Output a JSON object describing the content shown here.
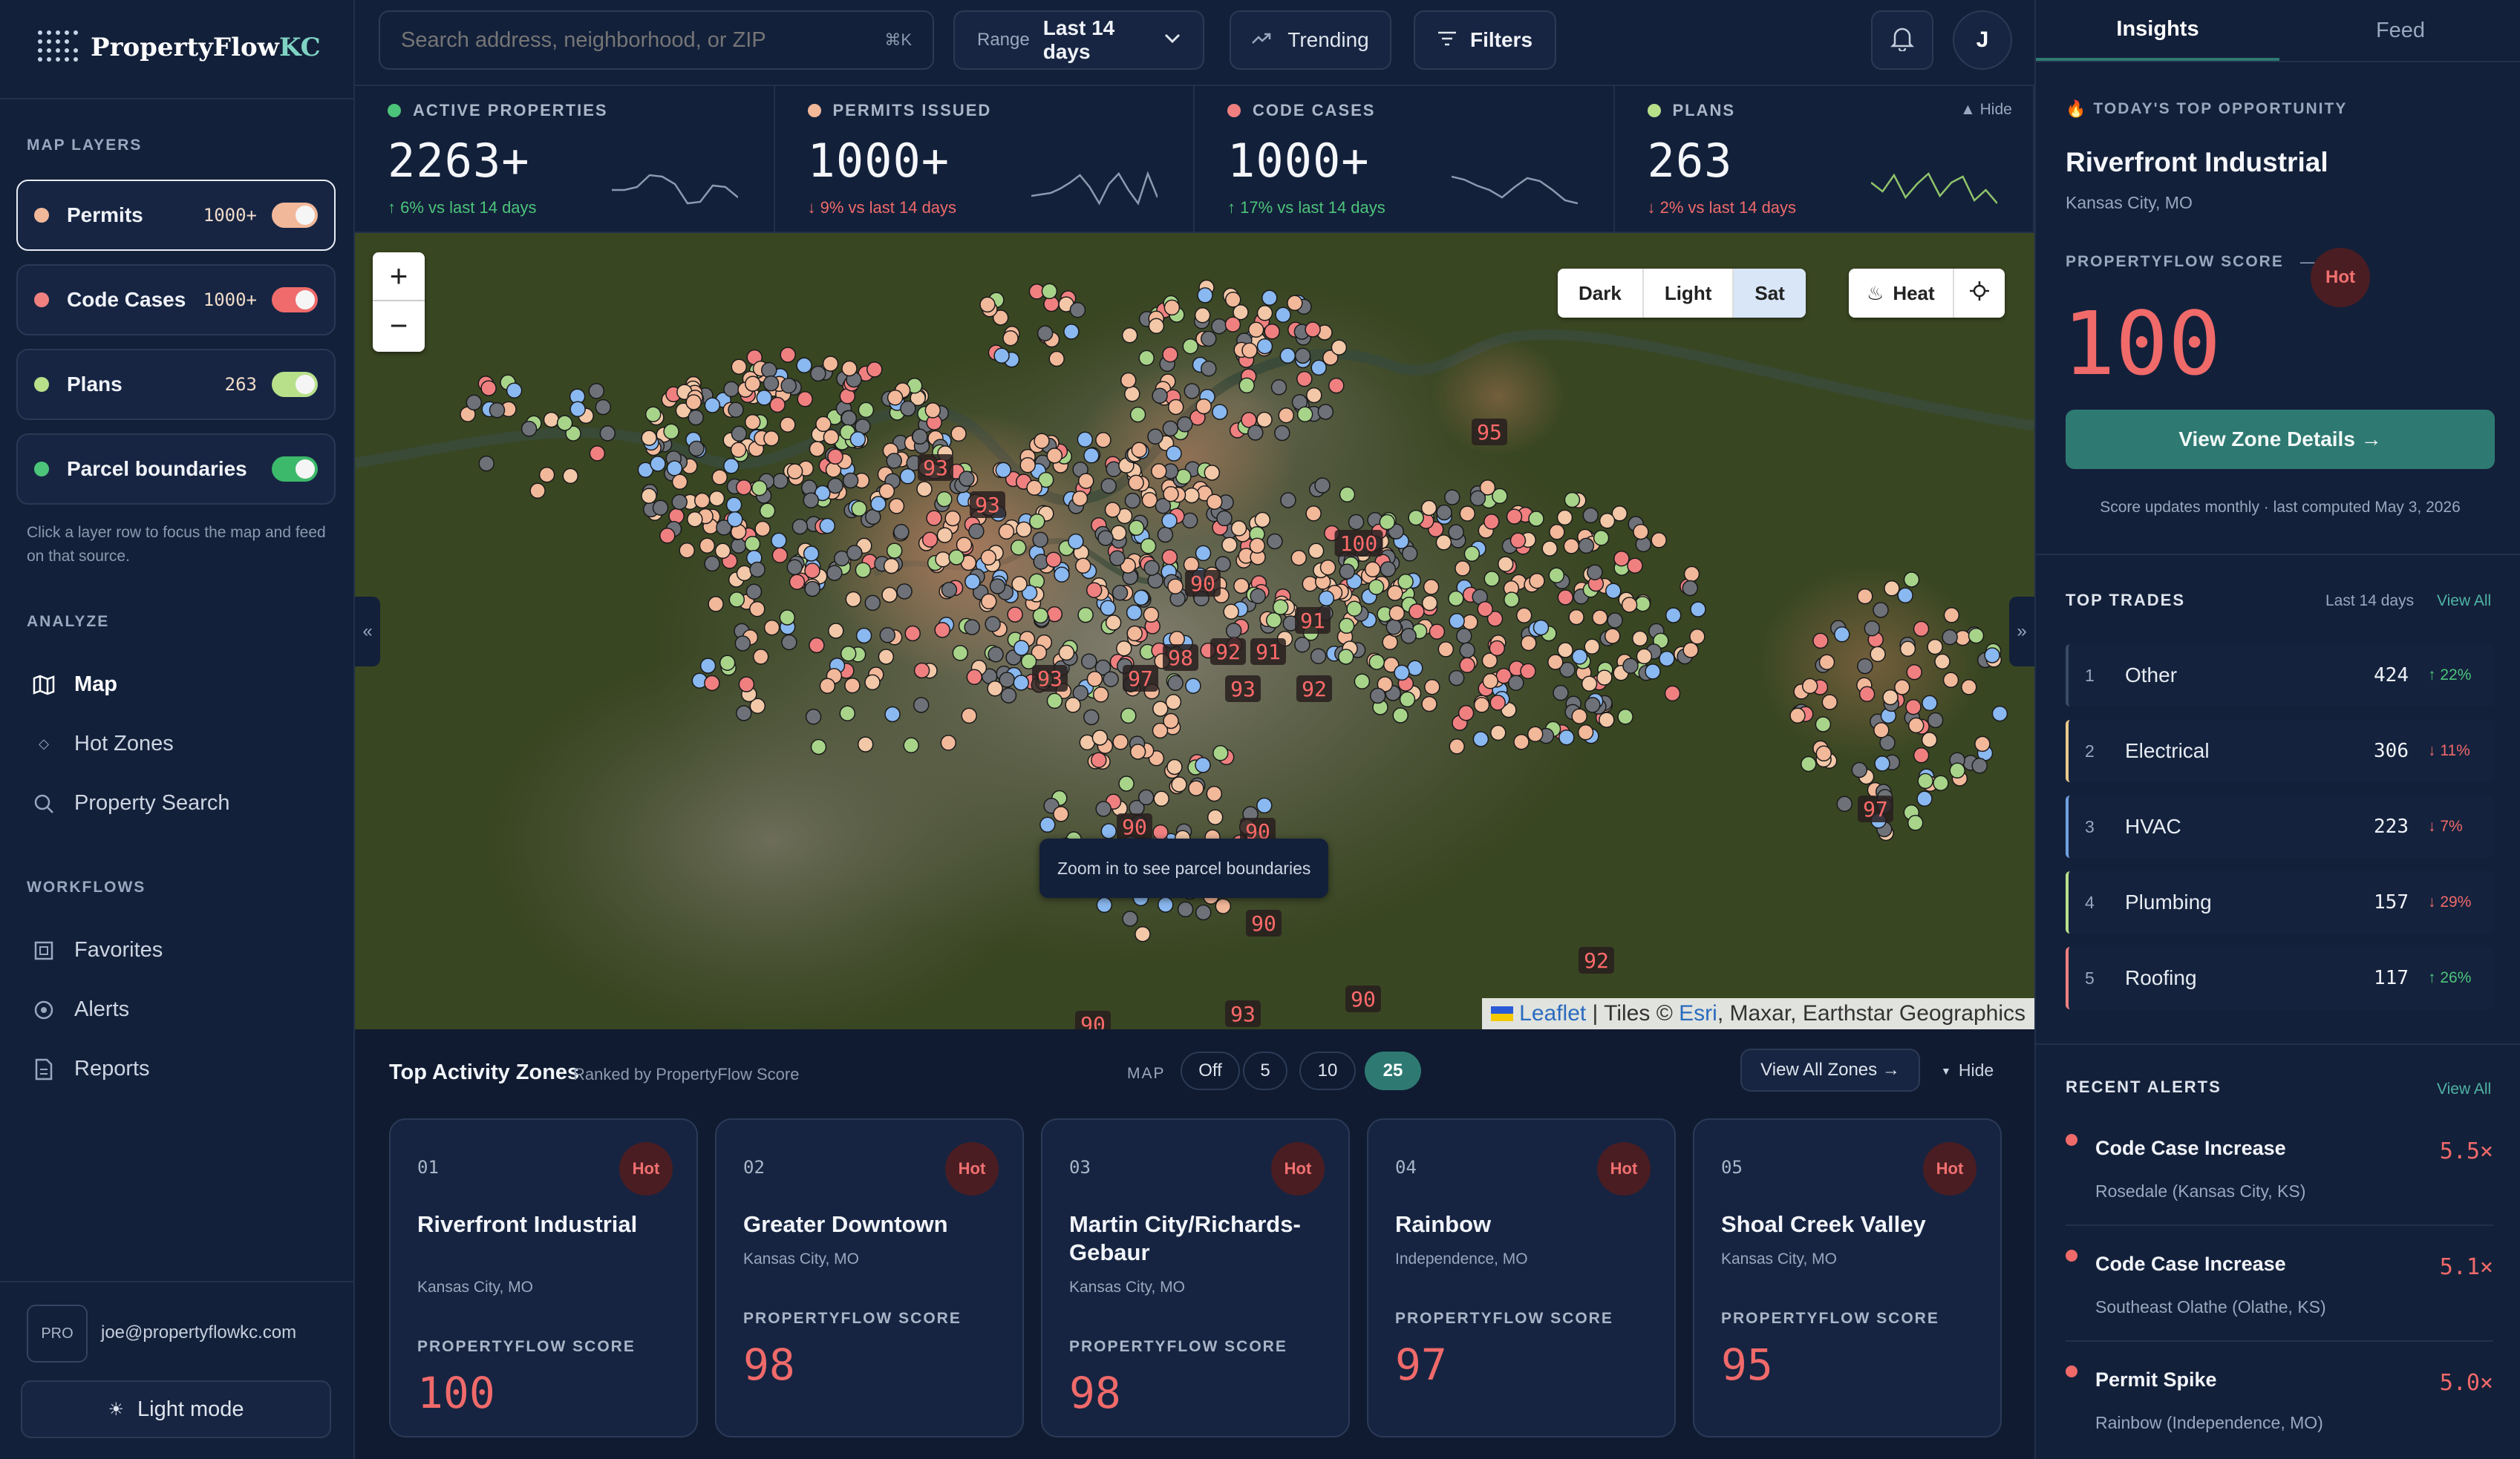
{
  "brand": {
    "name_a": "PropertyFlow",
    "name_b": "KC"
  },
  "sidebar": {
    "map_layers_label": "MAP LAYERS",
    "layers": [
      {
        "name": "Permits",
        "count": "1000+",
        "color": "#f2b89a",
        "toggle_color": "#f2b89a"
      },
      {
        "name": "Code Cases",
        "count": "1000+",
        "color": "#f08080",
        "toggle_color": "#f06b6b"
      },
      {
        "name": "Plans",
        "count": "263",
        "color": "#b8e08a",
        "toggle_color": "#b8e08a"
      },
      {
        "name": "Parcel boundaries",
        "count": "",
        "color": "#4cc47a",
        "toggle_color": "#3cb96a"
      }
    ],
    "layer_hint": "Click a layer row to focus the map and feed on that source.",
    "analyze_label": "ANALYZE",
    "analyze": [
      "Map",
      "Hot Zones",
      "Property Search"
    ],
    "workflows_label": "WORKFLOWS",
    "workflows": [
      "Favorites",
      "Alerts",
      "Reports"
    ],
    "user_badge": "PRO",
    "user_email": "joe@propertyflowkc.com",
    "light_mode": "Light mode"
  },
  "topbar": {
    "search_placeholder": "Search address, neighborhood, or ZIP",
    "search_shortcut": "⌘K",
    "range_label": "Range",
    "range_value": "Last 14 days",
    "trending": "Trending",
    "filters": "Filters",
    "avatar": "J"
  },
  "stats": [
    {
      "label": "ACTIVE PROPERTIES",
      "value": "2263+",
      "change": "↑ 6% vs last 14 days",
      "dot": "#4cc47a",
      "up": true
    },
    {
      "label": "PERMITS ISSUED",
      "value": "1000+",
      "change": "↓ 9% vs last 14 days",
      "dot": "#f2b89a",
      "up": false
    },
    {
      "label": "CODE CASES",
      "value": "1000+",
      "change": "↑ 17% vs last 14 days",
      "dot": "#f08080",
      "up": true
    },
    {
      "label": "PLANS",
      "value": "263",
      "change": "↓ 2% vs last 14 days",
      "dot": "#b8e08a",
      "up": false
    }
  ],
  "stats_hide": "▲ Hide",
  "map": {
    "style_options": [
      "Dark",
      "Light",
      "Sat"
    ],
    "style_selected": "Sat",
    "heat_label": "Heat",
    "zoom_in": "+",
    "zoom_out": "−",
    "tooltip": "Zoom in to see parcel boundaries",
    "attribution_leaflet": "Leaflet",
    "attribution_tiles": " | Tiles © ",
    "attribution_esri": "Esri",
    "attribution_rest": ", Maxar, Earthstar Geographics",
    "collapse_left": "«",
    "collapse_right": "»",
    "score_labels": [
      "93",
      "93",
      "95",
      "100",
      "90",
      "91",
      "98",
      "92",
      "91",
      "93",
      "97",
      "93",
      "92",
      "97",
      "90",
      "90",
      "90",
      "92",
      "93",
      "90",
      "90"
    ]
  },
  "zones_panel": {
    "title": "Top Activity Zones",
    "subtitle": "Ranked by PropertyFlow Score",
    "map_label": "MAP",
    "map_options": [
      "Off",
      "5",
      "10",
      "25"
    ],
    "map_selected": "25",
    "view_all": "View All Zones →",
    "hide": "Hide",
    "score_label": "PROPERTYFLOW SCORE",
    "hot": "Hot",
    "zones": [
      {
        "rank": "01",
        "name": "Riverfront Industrial",
        "location": "Kansas City, MO",
        "score": "100"
      },
      {
        "rank": "02",
        "name": "Greater Downtown",
        "location": "Kansas City, MO",
        "score": "98"
      },
      {
        "rank": "03",
        "name": "Martin City/Richards-Gebaur",
        "location": "Kansas City, MO",
        "score": "98"
      },
      {
        "rank": "04",
        "name": "Rainbow",
        "location": "Independence, MO",
        "score": "97"
      },
      {
        "rank": "05",
        "name": "Shoal Creek Valley",
        "location": "Kansas City, MO",
        "score": "95"
      }
    ]
  },
  "right": {
    "tabs": [
      "Insights",
      "Feed"
    ],
    "tab_selected": "Insights",
    "top_label": "TODAY'S TOP OPPORTUNITY",
    "top_name": "Riverfront Industrial",
    "top_location": "Kansas City, MO",
    "score_label": "PROPERTYFLOW SCORE",
    "score_dash": "—",
    "hot": "Hot",
    "score": "100",
    "cta": "View Zone Details →",
    "score_note": "Score updates monthly · last computed May 3, 2026",
    "trades_label": "TOP TRADES",
    "trades_range": "Last 14 days",
    "trades_view_all": "View All",
    "trades": [
      {
        "rank": "1",
        "name": "Other",
        "count": "424",
        "change": "↑ 22%",
        "up": true,
        "color": "#3a4a66"
      },
      {
        "rank": "2",
        "name": "Electrical",
        "count": "306",
        "change": "↓ 11%",
        "up": false,
        "color": "#e8c98a"
      },
      {
        "rank": "3",
        "name": "HVAC",
        "count": "223",
        "change": "↓ 7%",
        "up": false,
        "color": "#6fa0e0"
      },
      {
        "rank": "4",
        "name": "Plumbing",
        "count": "157",
        "change": "↓ 29%",
        "up": false,
        "color": "#b8e08a"
      },
      {
        "rank": "5",
        "name": "Roofing",
        "count": "117",
        "change": "↑ 26%",
        "up": true,
        "color": "#f08080"
      }
    ],
    "alerts_label": "RECENT ALERTS",
    "alerts_view_all": "View All",
    "alerts": [
      {
        "title": "Code Case Increase",
        "location": "Rosedale (Kansas City, KS)",
        "value": "5.5×"
      },
      {
        "title": "Code Case Increase",
        "location": "Southeast Olathe (Olathe, KS)",
        "value": "5.1×"
      },
      {
        "title": "Permit Spike",
        "location": "Rainbow (Independence, MO)",
        "value": "5.0×"
      }
    ]
  },
  "colors": {
    "accent": "#2e7a72",
    "hot": "#f06a6a",
    "up": "#4cc47a",
    "down": "#f06a6a"
  }
}
